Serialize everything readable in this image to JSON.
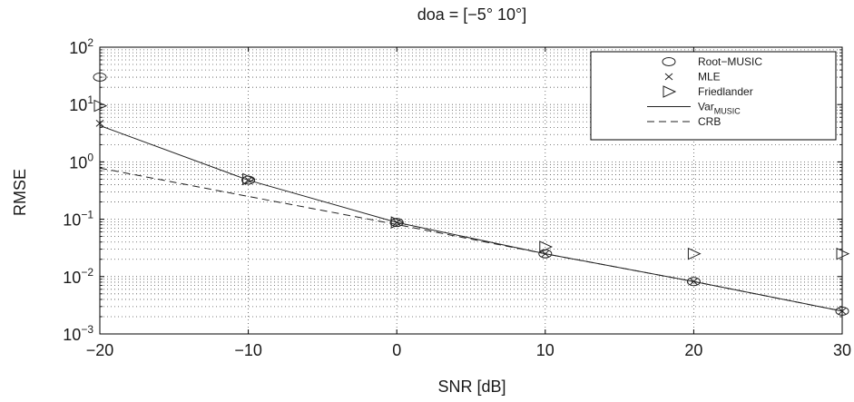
{
  "chart_data": {
    "type": "line",
    "title": "doa = [−5° 10°]",
    "xlabel": "SNR [dB]",
    "ylabel": "RMSE",
    "xlim": [
      -20,
      30
    ],
    "ylim": [
      0.001,
      100
    ],
    "yscale": "log",
    "grid": true,
    "legend_position": "top-right",
    "x_ticks": [
      "−20",
      "−10",
      "0",
      "10",
      "20",
      "30"
    ],
    "x_tick_values": [
      -20,
      -10,
      0,
      10,
      20,
      30
    ],
    "y_ticks": [
      {
        "base": "10",
        "exp": "2",
        "value": 100
      },
      {
        "base": "10",
        "exp": "1",
        "value": 10
      },
      {
        "base": "10",
        "exp": "0",
        "value": 1
      },
      {
        "base": "10",
        "exp": "−1",
        "value": 0.1
      },
      {
        "base": "10",
        "exp": "−2",
        "value": 0.01
      },
      {
        "base": "10",
        "exp": "−3",
        "value": 0.001
      }
    ],
    "x": [
      -20,
      -10,
      0,
      10,
      20,
      30
    ],
    "series": [
      {
        "name": "Root−MUSIC",
        "legend_name": "Root−MUSIC",
        "style": "marker",
        "marker": "circle",
        "values": [
          30,
          0.48,
          0.088,
          0.025,
          0.0082,
          0.0025
        ]
      },
      {
        "name": "MLE",
        "legend_name": "MLE",
        "style": "marker",
        "marker": "x",
        "values": [
          4.7,
          0.48,
          0.088,
          0.025,
          0.0082,
          0.0025
        ]
      },
      {
        "name": "Friedlander",
        "legend_name": "Friedlander",
        "style": "marker",
        "marker": "triangle-right",
        "values": [
          9.5,
          0.5,
          0.088,
          0.033,
          0.025,
          0.025
        ]
      },
      {
        "name": "VarMUSIC",
        "legend_name": "Var",
        "legend_sub": "MUSIC",
        "style": "solid",
        "values": [
          4.3,
          0.48,
          0.088,
          0.025,
          0.0082,
          0.0025
        ]
      },
      {
        "name": "CRB",
        "legend_name": "CRB",
        "style": "dashed",
        "values": [
          0.78,
          0.25,
          0.081,
          0.025,
          0.0082,
          0.0025
        ]
      }
    ]
  }
}
